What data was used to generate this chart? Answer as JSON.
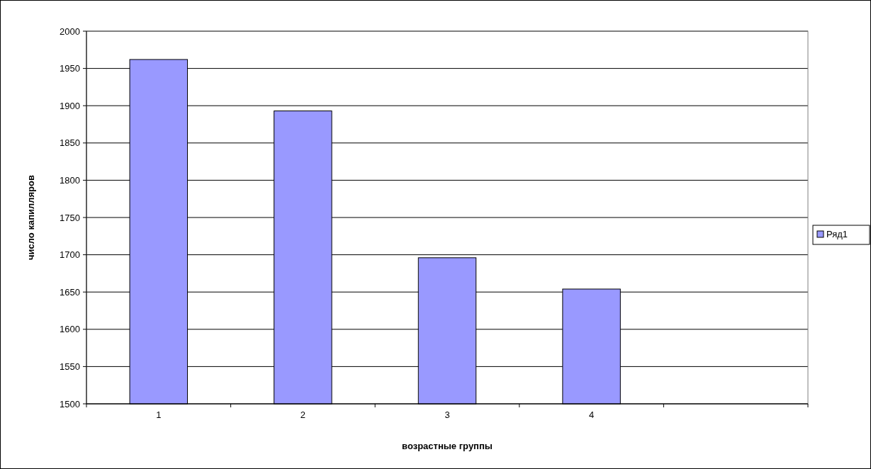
{
  "chart_data": {
    "type": "bar",
    "xlabel": "возрастные группы",
    "ylabel": "число капилляров",
    "categories": [
      "1",
      "2",
      "3",
      "4",
      null
    ],
    "series": [
      {
        "name": "Ряд1",
        "color": "#9999ff",
        "values": [
          1962,
          1893,
          1696,
          1654,
          null
        ]
      }
    ],
    "ylim": [
      1500,
      2000
    ],
    "yticks": [
      1500,
      1550,
      1600,
      1650,
      1700,
      1750,
      1800,
      1850,
      1900,
      1950,
      2000
    ],
    "grid": "y",
    "legend": "right"
  }
}
